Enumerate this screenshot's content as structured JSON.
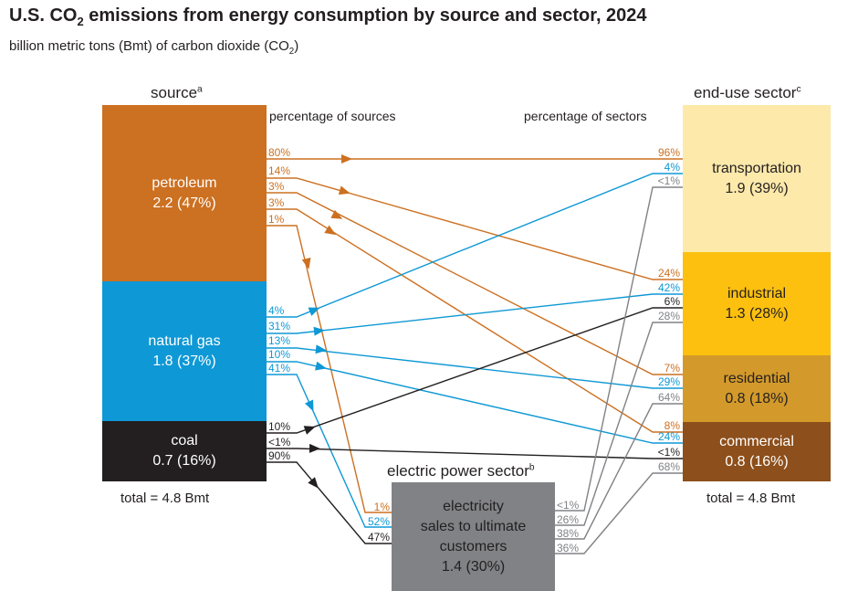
{
  "title": {
    "pre": "U.S. CO",
    "sub": "2",
    "post": " emissions from energy consumption by source and sector, 2024"
  },
  "subtitle": {
    "pre": "billion metric tons (Bmt) of carbon dioxide (CO",
    "sub": "2",
    "post": ")"
  },
  "source_header": {
    "label": "source",
    "note": "a"
  },
  "sector_header": {
    "label": "end-use sector",
    "note": "c"
  },
  "electric_header": {
    "label": "electric power sector",
    "note": "b"
  },
  "pct_sources_label": "percentage of sources",
  "pct_sectors_label": "percentage of sectors",
  "colors": {
    "petroleum": "#cc7021",
    "natural_gas": "#0e98d5",
    "coal": "#231f20",
    "electricity": "#808285",
    "transportation": "#fde9aa",
    "industrial": "#fdc00f",
    "residential": "#d39a2b",
    "commercial": "#8d4f1b"
  },
  "sources": [
    {
      "name": "petroleum",
      "value": "2.2 (47%)"
    },
    {
      "name": "natural gas",
      "value": "1.8  (37%)"
    },
    {
      "name": "coal",
      "value": "0.7  (16%)"
    }
  ],
  "sectors": [
    {
      "name": "transportation",
      "value": "1.9  (39%)"
    },
    {
      "name": "industrial",
      "value": "1.3  (28%)"
    },
    {
      "name": "residential",
      "value": "0.8  (18%)"
    },
    {
      "name": "commercial",
      "value": "0.8  (16%)"
    }
  ],
  "electric": {
    "line1": "electricity",
    "line2": "sales to ultimate",
    "line3": "customers",
    "value": "1.4  (30%)"
  },
  "source_total": "total = 4.8 Bmt",
  "sector_total": "total = 4.8 Bmt",
  "flows": [
    {
      "from": "petroleum",
      "to": "transportation",
      "source_pct": "80%",
      "target_pct": "96%"
    },
    {
      "from": "petroleum",
      "to": "industrial",
      "source_pct": "14%",
      "target_pct": "24%"
    },
    {
      "from": "petroleum",
      "to": "residential",
      "source_pct": "3%",
      "target_pct": "7%"
    },
    {
      "from": "petroleum",
      "to": "commercial",
      "source_pct": "3%",
      "target_pct": "8%"
    },
    {
      "from": "petroleum",
      "to": "electric power",
      "source_pct": "1%",
      "target_pct": "1%"
    },
    {
      "from": "natural gas",
      "to": "transportation",
      "source_pct": "4%",
      "target_pct": "4%"
    },
    {
      "from": "natural gas",
      "to": "industrial",
      "source_pct": "31%",
      "target_pct": "42%"
    },
    {
      "from": "natural gas",
      "to": "residential",
      "source_pct": "13%",
      "target_pct": "29%"
    },
    {
      "from": "natural gas",
      "to": "commercial",
      "source_pct": "10%",
      "target_pct": "24%"
    },
    {
      "from": "natural gas",
      "to": "electric power",
      "source_pct": "41%",
      "target_pct": "52%"
    },
    {
      "from": "coal",
      "to": "industrial",
      "source_pct": "10%",
      "target_pct": "6%"
    },
    {
      "from": "coal",
      "to": "commercial",
      "source_pct": "<1%",
      "target_pct": "<1%"
    },
    {
      "from": "coal",
      "to": "electric power",
      "source_pct": "90%",
      "target_pct": "47%"
    },
    {
      "from": "electricity",
      "to": "transportation",
      "source_pct": "<1%",
      "target_pct": "<1%"
    },
    {
      "from": "electricity",
      "to": "industrial",
      "source_pct": "26%",
      "target_pct": "28%"
    },
    {
      "from": "electricity",
      "to": "residential",
      "source_pct": "38%",
      "target_pct": "64%"
    },
    {
      "from": "electricity",
      "to": "commercial",
      "source_pct": "36%",
      "target_pct": "68%"
    }
  ]
}
